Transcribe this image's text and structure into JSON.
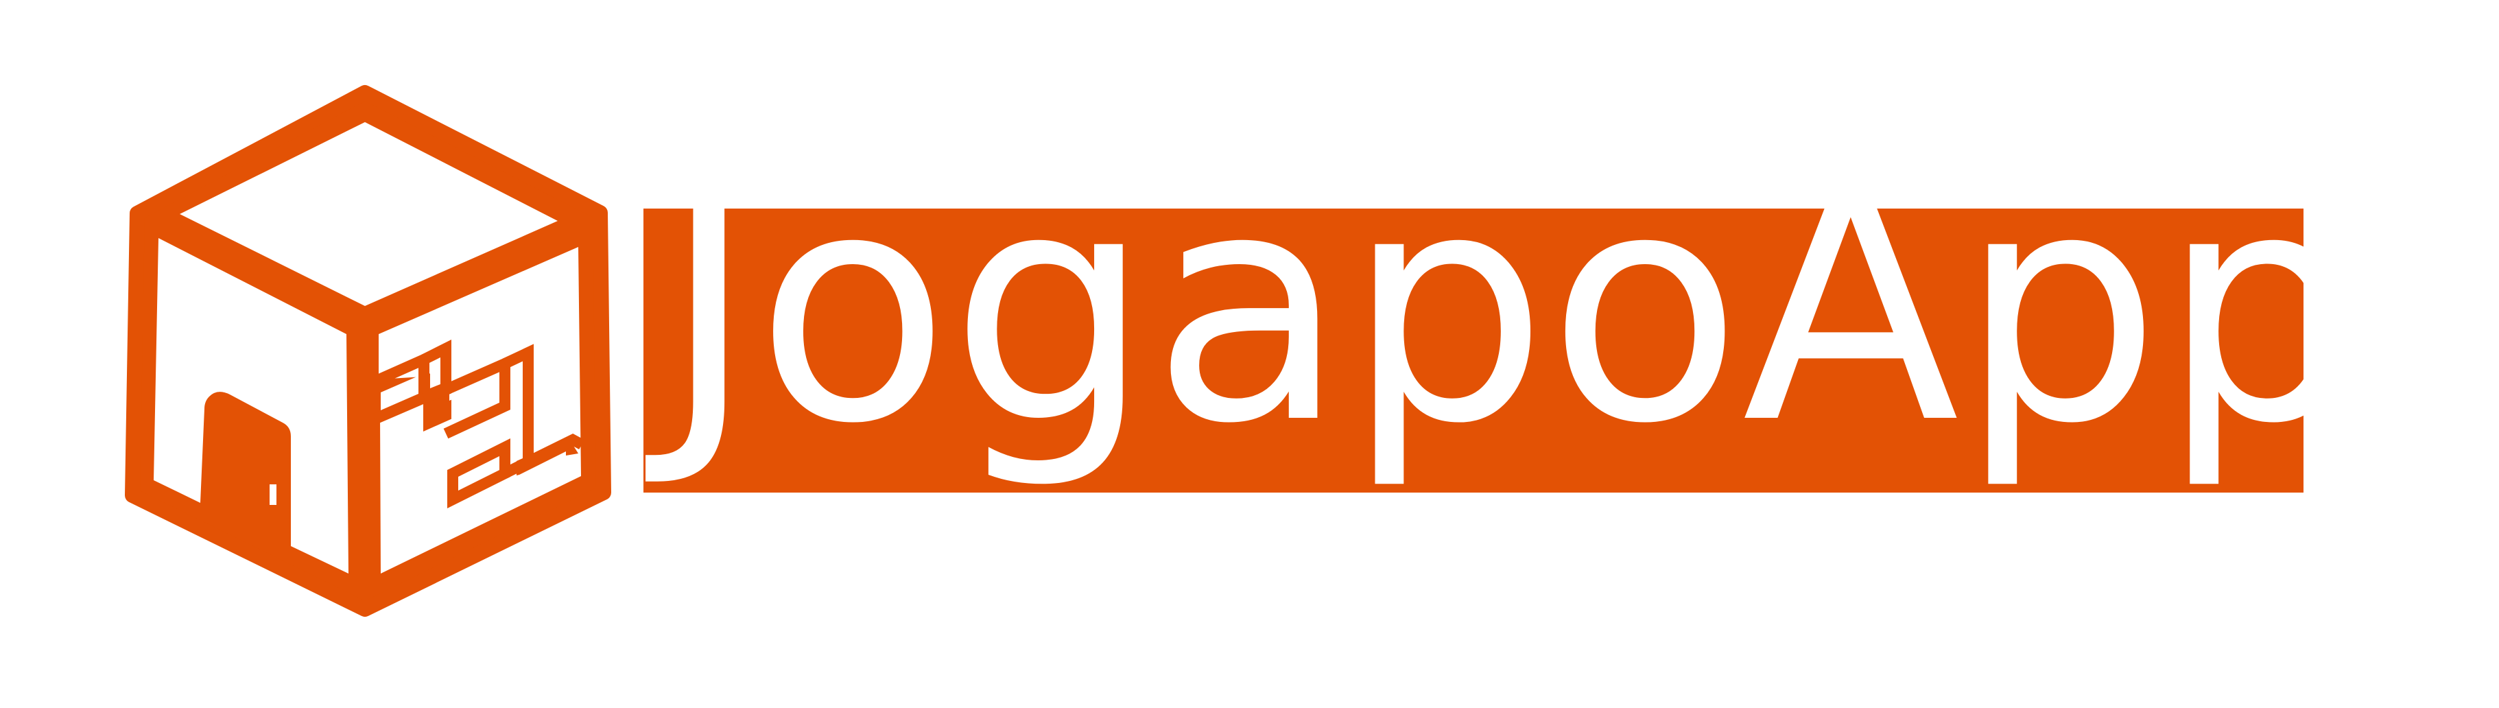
{
  "logo": {
    "brand_name": "JogapoApp",
    "icon_name": "cube-house-stairs-icon",
    "colors": {
      "brand": "#e35205",
      "text": "#ffffff",
      "background": "#ffffff"
    }
  }
}
